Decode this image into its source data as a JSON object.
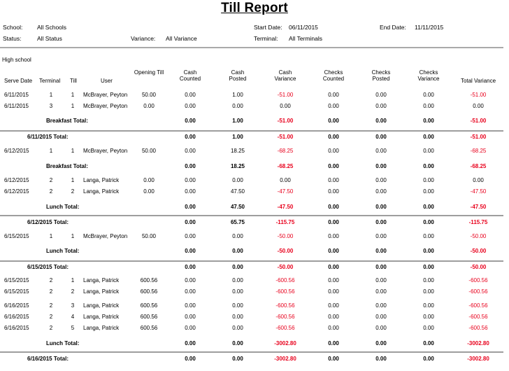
{
  "title": "Till Report",
  "filters": {
    "school_label": "School:",
    "school_value": "All Schools",
    "status_label": "Status:",
    "status_value": "All Status",
    "variance_label": "Variance:",
    "variance_value": "All Variance",
    "start_label": "Start Date:",
    "start_value": "06/11/2015",
    "end_label": "End Date:",
    "end_value": "11/11/2015",
    "terminal_label": "Terminal:",
    "terminal_value": "All Terminals"
  },
  "school_name": "High school",
  "columns": {
    "serve_date": "Serve Date",
    "terminal": "Terminal",
    "till": "Till",
    "user": "User",
    "opening_till": "Opening Till",
    "cash_counted": [
      "Cash",
      "Counted"
    ],
    "cash_posted": [
      "Cash",
      "Posted"
    ],
    "cash_variance": [
      "Cash",
      "Variance"
    ],
    "checks_counted": [
      "Checks",
      "Counted"
    ],
    "checks_posted": [
      "Checks",
      "Posted"
    ],
    "checks_variance": [
      "Checks",
      "Variance"
    ],
    "total_variance": "Total Variance"
  },
  "rows": [
    {
      "type": "detail",
      "date": "6/11/2015",
      "terminal": "1",
      "till": "1",
      "user": "McBrayer, Peyton",
      "opening": "50.00",
      "cash_counted": "0.00",
      "cash_posted": "1.00",
      "cash_variance": "-51.00",
      "checks_counted": "0.00",
      "checks_posted": "0.00",
      "checks_variance": "0.00",
      "total_variance": "-51.00"
    },
    {
      "type": "detail",
      "date": "6/11/2015",
      "terminal": "3",
      "till": "1",
      "user": "McBrayer, Peyton",
      "opening": "0.00",
      "cash_counted": "0.00",
      "cash_posted": "0.00",
      "cash_variance": "0.00",
      "checks_counted": "0.00",
      "checks_posted": "0.00",
      "checks_variance": "0.00",
      "total_variance": "0.00"
    },
    {
      "type": "meal",
      "label": "Breakfast Total:",
      "cash_counted": "0.00",
      "cash_posted": "1.00",
      "cash_variance": "-51.00",
      "checks_counted": "0.00",
      "checks_posted": "0.00",
      "checks_variance": "0.00",
      "total_variance": "-51.00"
    },
    {
      "type": "day",
      "label": "6/11/2015 Total:",
      "cash_counted": "0.00",
      "cash_posted": "1.00",
      "cash_variance": "-51.00",
      "checks_counted": "0.00",
      "checks_posted": "0.00",
      "checks_variance": "0.00",
      "total_variance": "-51.00"
    },
    {
      "type": "detail",
      "date": "6/12/2015",
      "terminal": "1",
      "till": "1",
      "user": "McBrayer, Peyton",
      "opening": "50.00",
      "cash_counted": "0.00",
      "cash_posted": "18.25",
      "cash_variance": "-68.25",
      "checks_counted": "0.00",
      "checks_posted": "0.00",
      "checks_variance": "0.00",
      "total_variance": "-68.25"
    },
    {
      "type": "meal",
      "label": "Breakfast Total:",
      "cash_counted": "0.00",
      "cash_posted": "18.25",
      "cash_variance": "-68.25",
      "checks_counted": "0.00",
      "checks_posted": "0.00",
      "checks_variance": "0.00",
      "total_variance": "-68.25"
    },
    {
      "type": "detail",
      "date": "6/12/2015",
      "terminal": "2",
      "till": "1",
      "user": "Langa, Patrick",
      "opening": "0.00",
      "cash_counted": "0.00",
      "cash_posted": "0.00",
      "cash_variance": "0.00",
      "checks_counted": "0.00",
      "checks_posted": "0.00",
      "checks_variance": "0.00",
      "total_variance": "0.00"
    },
    {
      "type": "detail",
      "date": "6/12/2015",
      "terminal": "2",
      "till": "2",
      "user": "Langa, Patrick",
      "opening": "0.00",
      "cash_counted": "0.00",
      "cash_posted": "47.50",
      "cash_variance": "-47.50",
      "checks_counted": "0.00",
      "checks_posted": "0.00",
      "checks_variance": "0.00",
      "total_variance": "-47.50"
    },
    {
      "type": "meal",
      "label": "Lunch Total:",
      "cash_counted": "0.00",
      "cash_posted": "47.50",
      "cash_variance": "-47.50",
      "checks_counted": "0.00",
      "checks_posted": "0.00",
      "checks_variance": "0.00",
      "total_variance": "-47.50"
    },
    {
      "type": "day",
      "label": "6/12/2015 Total:",
      "cash_counted": "0.00",
      "cash_posted": "65.75",
      "cash_variance": "-115.75",
      "checks_counted": "0.00",
      "checks_posted": "0.00",
      "checks_variance": "0.00",
      "total_variance": "-115.75"
    },
    {
      "type": "detail",
      "date": "6/15/2015",
      "terminal": "1",
      "till": "1",
      "user": "McBrayer, Peyton",
      "opening": "50.00",
      "cash_counted": "0.00",
      "cash_posted": "0.00",
      "cash_variance": "-50.00",
      "checks_counted": "0.00",
      "checks_posted": "0.00",
      "checks_variance": "0.00",
      "total_variance": "-50.00"
    },
    {
      "type": "meal",
      "label": "Lunch Total:",
      "cash_counted": "0.00",
      "cash_posted": "0.00",
      "cash_variance": "-50.00",
      "checks_counted": "0.00",
      "checks_posted": "0.00",
      "checks_variance": "0.00",
      "total_variance": "-50.00"
    },
    {
      "type": "day",
      "label": "6/15/2015 Total:",
      "cash_counted": "0.00",
      "cash_posted": "0.00",
      "cash_variance": "-50.00",
      "checks_counted": "0.00",
      "checks_posted": "0.00",
      "checks_variance": "0.00",
      "total_variance": "-50.00"
    },
    {
      "type": "detail",
      "date": "6/15/2015",
      "terminal": "2",
      "till": "1",
      "user": "Langa, Patrick",
      "opening": "600.56",
      "cash_counted": "0.00",
      "cash_posted": "0.00",
      "cash_variance": "-600.56",
      "checks_counted": "0.00",
      "checks_posted": "0.00",
      "checks_variance": "0.00",
      "total_variance": "-600.56"
    },
    {
      "type": "detail",
      "date": "6/15/2015",
      "terminal": "2",
      "till": "2",
      "user": "Langa, Patrick",
      "opening": "600.56",
      "cash_counted": "0.00",
      "cash_posted": "0.00",
      "cash_variance": "-600.56",
      "checks_counted": "0.00",
      "checks_posted": "0.00",
      "checks_variance": "0.00",
      "total_variance": "-600.56"
    },
    {
      "type": "detail",
      "date": "6/16/2015",
      "terminal": "2",
      "till": "3",
      "user": "Langa, Patrick",
      "opening": "600.56",
      "cash_counted": "0.00",
      "cash_posted": "0.00",
      "cash_variance": "-600.56",
      "checks_counted": "0.00",
      "checks_posted": "0.00",
      "checks_variance": "0.00",
      "total_variance": "-600.56"
    },
    {
      "type": "detail",
      "date": "6/16/2015",
      "terminal": "2",
      "till": "4",
      "user": "Langa, Patrick",
      "opening": "600.56",
      "cash_counted": "0.00",
      "cash_posted": "0.00",
      "cash_variance": "-600.56",
      "checks_counted": "0.00",
      "checks_posted": "0.00",
      "checks_variance": "0.00",
      "total_variance": "-600.56"
    },
    {
      "type": "detail",
      "date": "6/16/2015",
      "terminal": "2",
      "till": "5",
      "user": "Langa, Patrick",
      "opening": "600.56",
      "cash_counted": "0.00",
      "cash_posted": "0.00",
      "cash_variance": "-600.56",
      "checks_counted": "0.00",
      "checks_posted": "0.00",
      "checks_variance": "0.00",
      "total_variance": "-600.56"
    },
    {
      "type": "meal",
      "label": "Lunch Total:",
      "cash_counted": "0.00",
      "cash_posted": "0.00",
      "cash_variance": "-3002.80",
      "checks_counted": "0.00",
      "checks_posted": "0.00",
      "checks_variance": "0.00",
      "total_variance": "-3002.80"
    },
    {
      "type": "day",
      "label": "6/16/2015 Total:",
      "cash_counted": "0.00",
      "cash_posted": "0.00",
      "cash_variance": "-3002.80",
      "checks_counted": "0.00",
      "checks_posted": "0.00",
      "checks_variance": "0.00",
      "total_variance": "-3002.80"
    }
  ],
  "colors": {
    "negative": "#e8001c",
    "rule": "#a9a9a9"
  }
}
